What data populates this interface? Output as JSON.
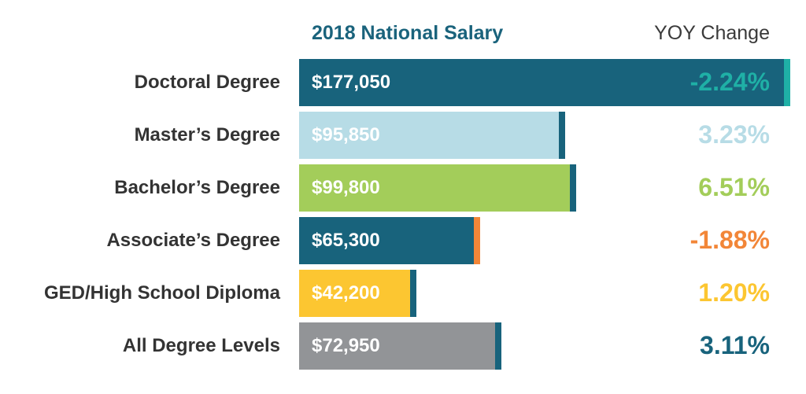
{
  "chart_data": {
    "type": "bar",
    "orientation": "horizontal",
    "title": "",
    "value_header": "2018 National Salary",
    "change_header": "YOY Change",
    "categories": [
      "Doctoral Degree",
      "Master’s Degree",
      "Bachelor’s Degree",
      "Associate’s Degree",
      "GED/High School Diploma",
      "All Degree Levels"
    ],
    "values": [
      177050,
      95850,
      99800,
      65300,
      42200,
      72950
    ],
    "value_labels": [
      "$177,050",
      "$95,850",
      "$99,800",
      "$65,300",
      "$42,200",
      "$72,950"
    ],
    "yoy_change": [
      -2.24,
      3.23,
      6.51,
      -1.88,
      1.2,
      3.11
    ],
    "yoy_labels": [
      "-2.24%",
      "3.23%",
      "6.51%",
      "-1.88%",
      "1.20%",
      "3.11%"
    ],
    "bar_colors": [
      "#18637c",
      "#b7dce6",
      "#a3cd5a",
      "#18637c",
      "#fcc631",
      "#929497"
    ],
    "change_colors": [
      "#1fb0a6",
      "#b7dce6",
      "#a3cd5a",
      "#f28638",
      "#fcc631",
      "#18637c"
    ],
    "cap_colors": [
      "#1fb0a6",
      "#18637c",
      "#18637c",
      "#f28638",
      "#18637c",
      "#18637c"
    ],
    "xlim": [
      0,
      177050
    ],
    "grid": false,
    "legend": "none"
  }
}
